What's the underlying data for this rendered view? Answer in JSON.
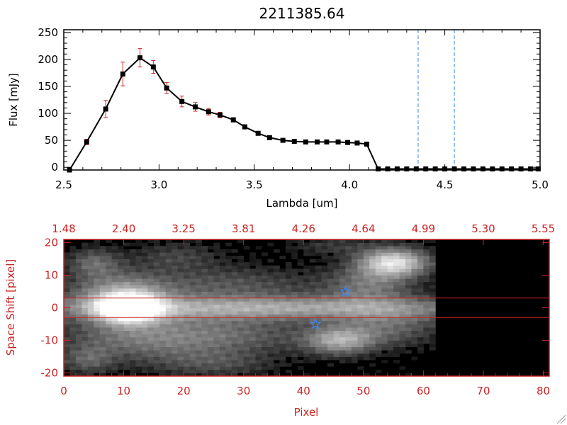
{
  "chart_data": [
    {
      "type": "line",
      "title": "2211385.64",
      "xlabel": "Lambda [um]",
      "ylabel": "Flux [mJy]",
      "xlim": [
        2.5,
        5.0
      ],
      "ylim": [
        -5,
        255
      ],
      "x_ticks": [
        "2.5",
        "3.0",
        "3.5",
        "4.0",
        "4.5",
        "5.0"
      ],
      "y_ticks": [
        "0",
        "50",
        "100",
        "150",
        "200",
        "250"
      ],
      "grid": false,
      "markers": "filled-square",
      "line_color": "#000000",
      "marker_color": "#000000",
      "errorbar_color": "#cc2222",
      "vlines": [
        4.36,
        4.55
      ],
      "vline_color": "#3388dd",
      "x": [
        2.53,
        2.62,
        2.72,
        2.81,
        2.9,
        2.97,
        3.04,
        3.12,
        3.19,
        3.26,
        3.32,
        3.39,
        3.45,
        3.52,
        3.58,
        3.65,
        3.71,
        3.77,
        3.83,
        3.88,
        3.94,
        3.99,
        4.04,
        4.09,
        4.15,
        4.2,
        4.25,
        4.3,
        4.35,
        4.4,
        4.45,
        4.5,
        4.55,
        4.6,
        4.65,
        4.7,
        4.75,
        4.8,
        4.85,
        4.9,
        4.95,
        4.99
      ],
      "y": [
        -5,
        47,
        108,
        173,
        203,
        186,
        147,
        122,
        112,
        103,
        97,
        88,
        75,
        63,
        55,
        50,
        48,
        47,
        47,
        47,
        47,
        46,
        45,
        43,
        -3,
        -3,
        -3,
        -3,
        -3,
        -3,
        -3,
        -3,
        -3,
        -3,
        -3,
        -3,
        -3,
        -3,
        -3,
        -3,
        -3,
        -3
      ],
      "err": [
        0,
        5,
        16,
        22,
        17,
        12,
        10,
        10,
        8,
        6,
        5,
        4,
        4,
        3,
        3,
        3,
        2,
        2,
        2,
        2,
        2,
        2,
        2,
        2,
        0,
        0,
        0,
        0,
        0,
        0,
        0,
        0,
        0,
        0,
        0,
        0,
        0,
        0,
        0,
        0,
        0,
        0
      ]
    },
    {
      "type": "heatmap",
      "xlabel": "Pixel",
      "ylabel": "Space Shift [pixel]",
      "xlim": [
        0,
        81
      ],
      "ylim": [
        -21,
        21
      ],
      "x_ticks": [
        "0",
        "10",
        "20",
        "30",
        "40",
        "50",
        "60",
        "70",
        "80"
      ],
      "y_ticks": [
        "-20",
        "-10",
        "0",
        "10",
        "20"
      ],
      "top_ticks": [
        "1.48",
        "2.40",
        "3.25",
        "3.81",
        "4.26",
        "4.64",
        "4.99",
        "5.30",
        "5.55"
      ],
      "colormap": "grayscale",
      "axis_color": "#cc2222",
      "hlines": [
        3,
        -3
      ],
      "hline_color": "#cc2222",
      "markers": [
        {
          "shape": "star",
          "x": 47,
          "y": 5,
          "color": "#4488ee"
        },
        {
          "shape": "star",
          "x": 42,
          "y": -5,
          "color": "#4488ee"
        }
      ],
      "data_extent_x": [
        0,
        62
      ],
      "blobs": [
        {
          "x": 11,
          "y": 0,
          "sx": 3.5,
          "sy": 3.2,
          "a": 1.0
        },
        {
          "x": 35,
          "y": 0,
          "sx": 27,
          "sy": 2.6,
          "a": 0.55
        },
        {
          "x": 9,
          "y": 4,
          "sx": 6,
          "sy": 5,
          "a": 0.45
        },
        {
          "x": 14,
          "y": -9,
          "sx": 10,
          "sy": 5,
          "a": 0.38
        },
        {
          "x": 27,
          "y": 7,
          "sx": 11,
          "sy": 4,
          "a": 0.25
        },
        {
          "x": 30,
          "y": -8,
          "sx": 9,
          "sy": 4,
          "a": 0.22
        },
        {
          "x": 46,
          "y": -10,
          "sx": 4,
          "sy": 3,
          "a": 0.55
        },
        {
          "x": 55,
          "y": 14,
          "sx": 4,
          "sy": 3,
          "a": 0.85
        },
        {
          "x": 51,
          "y": 7,
          "sx": 5,
          "sy": 4,
          "a": 0.35
        },
        {
          "x": 54,
          "y": -6,
          "sx": 6,
          "sy": 4,
          "a": 0.3
        },
        {
          "x": 5,
          "y": 14,
          "sx": 3,
          "sy": 3,
          "a": 0.3
        },
        {
          "x": 19,
          "y": 16,
          "sx": 5,
          "sy": 3,
          "a": 0.18
        },
        {
          "x": 45,
          "y": 19,
          "sx": 5,
          "sy": 2,
          "a": 0.15
        },
        {
          "x": 25,
          "y": -17,
          "sx": 7,
          "sy": 3,
          "a": 0.2
        },
        {
          "x": 4,
          "y": -16,
          "sx": 3,
          "sy": 3,
          "a": 0.25
        }
      ]
    }
  ]
}
